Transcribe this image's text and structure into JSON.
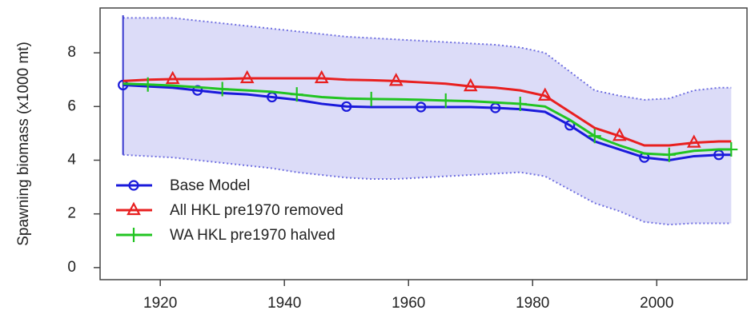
{
  "chart_data": {
    "type": "line",
    "ylabel": "Spawning biomass (x1000 mt)",
    "x": [
      1914,
      1918,
      1922,
      1926,
      1930,
      1934,
      1938,
      1942,
      1946,
      1950,
      1954,
      1958,
      1962,
      1966,
      1970,
      1974,
      1978,
      1982,
      1986,
      1990,
      1994,
      1998,
      2002,
      2006,
      2010,
      2012
    ],
    "series": [
      {
        "name": "Base Model",
        "color": "#1a1adb",
        "marker": "circle",
        "values": [
          6.8,
          6.75,
          6.7,
          6.6,
          6.5,
          6.45,
          6.35,
          6.25,
          6.1,
          6.0,
          5.98,
          5.98,
          5.98,
          5.98,
          5.98,
          5.95,
          5.9,
          5.8,
          5.3,
          4.7,
          4.4,
          4.1,
          4.0,
          4.15,
          4.2,
          4.2
        ]
      },
      {
        "name": "All HKL pre1970 removed",
        "color": "#e82020",
        "marker": "triangle",
        "values": [
          6.95,
          7.0,
          7.02,
          7.02,
          7.03,
          7.05,
          7.05,
          7.05,
          7.05,
          7.0,
          6.98,
          6.95,
          6.9,
          6.85,
          6.75,
          6.7,
          6.6,
          6.4,
          5.8,
          5.2,
          4.9,
          4.55,
          4.55,
          4.65,
          4.7,
          4.7
        ]
      },
      {
        "name": "WA HKL pre1970 halved",
        "color": "#22c422",
        "marker": "plus",
        "values": [
          6.85,
          6.82,
          6.78,
          6.72,
          6.65,
          6.6,
          6.55,
          6.45,
          6.35,
          6.3,
          6.28,
          6.27,
          6.25,
          6.22,
          6.2,
          6.15,
          6.1,
          6.0,
          5.5,
          4.9,
          4.55,
          4.25,
          4.2,
          4.35,
          4.4,
          4.4
        ]
      }
    ],
    "interval": {
      "color": "#dcdcf8",
      "edge_color": "#6f6fe0",
      "upper": [
        9.3,
        9.3,
        9.3,
        9.2,
        9.1,
        9.0,
        8.9,
        8.8,
        8.7,
        8.6,
        8.55,
        8.5,
        8.45,
        8.4,
        8.35,
        8.3,
        8.2,
        8.0,
        7.3,
        6.6,
        6.4,
        6.25,
        6.3,
        6.6,
        6.7,
        6.7
      ],
      "lower": [
        4.2,
        4.15,
        4.1,
        4.0,
        3.9,
        3.8,
        3.7,
        3.55,
        3.45,
        3.35,
        3.3,
        3.3,
        3.35,
        3.4,
        3.45,
        3.5,
        3.55,
        3.4,
        2.9,
        2.4,
        2.1,
        1.7,
        1.6,
        1.65,
        1.65,
        1.65
      ]
    },
    "error_bar": {
      "x": 1914,
      "low": 4.2,
      "high": 9.4,
      "color": "#3a3ad0"
    },
    "xlim": [
      1910.3,
      2014.8
    ],
    "ylim": [
      -0.45,
      9.67
    ],
    "xticks": [
      1920,
      1940,
      1960,
      1980,
      2000
    ],
    "yticks": [
      0,
      2,
      4,
      6,
      8
    ],
    "legend": "bottom-left"
  }
}
